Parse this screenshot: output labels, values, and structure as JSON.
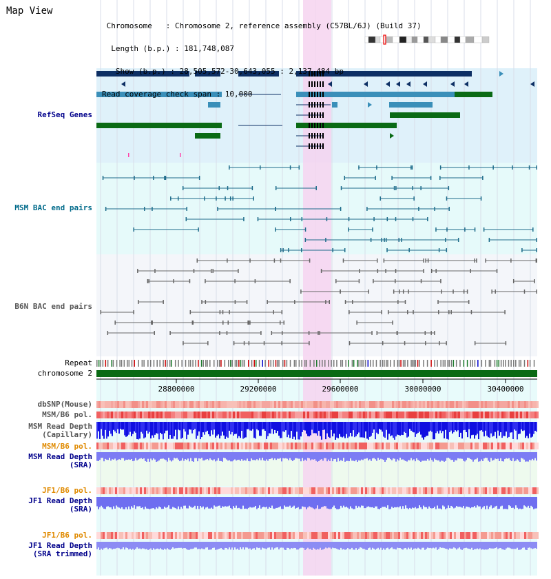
{
  "page": {
    "title": "Map View"
  },
  "info": {
    "lines": [
      " Chromosome   : Chromosome 2, reference assembly (C57BL/6J) (Build 37)",
      "  Length (b.p.) : 181,748,087",
      "   Show (b.p.) : 28,505,572-30,643,055 : 2,137,484 bp",
      "Read coverage check span : 10,000"
    ]
  },
  "tracks": {
    "refseq": {
      "label": "RefSeq Genes"
    },
    "msm_bac": {
      "label": "MSM BAC end pairs"
    },
    "b6n_bac": {
      "label": "B6N BAC end pairs"
    },
    "repeat": {
      "label": "Repeat"
    },
    "chromosome": {
      "label": "chromosome 2"
    },
    "dbsnp": {
      "label": "dbSNP(Mouse)"
    },
    "msm_b6_pol": {
      "label": "MSM/B6 pol."
    },
    "msm_depth_cap": {
      "label": "MSM Read Depth\n(Capillary)"
    },
    "msm_b6_pol2": {
      "label": "MSM/B6 pol."
    },
    "msm_depth_sra": {
      "label": "MSM Read Depth\n(SRA)"
    },
    "jf1_b6_pol": {
      "label": "JF1/B6 pol."
    },
    "jf1_depth_sra": {
      "label": "JF1 Read Depth\n(SRA)"
    },
    "jf1_b6_pol2": {
      "label": "JF1/B6 pol."
    },
    "jf1_depth_trim": {
      "label": "JF1 Read Depth\n(SRA trimmed)"
    }
  },
  "axis": {
    "ticks": [
      "28800000",
      "29200000",
      "29600000",
      "30000000",
      "30400000"
    ]
  },
  "colors": {
    "refseq_bg": "#dff1fa",
    "msm_bg": "#e6fafa",
    "b6n_bg": "#f4f6fa",
    "gene_dark": "#0d2f64",
    "gene_mid": "#3a8fb9",
    "gene_green": "#0a6a14",
    "msm_line": "#1d6b8a",
    "b6n_line": "#666666",
    "highlight": "#f6d4f0",
    "chromosome": "#0a6a14",
    "label_navy": "#00008b",
    "label_teal": "#006a8a",
    "label_gray": "#555555",
    "label_orange": "#e08a00"
  }
}
